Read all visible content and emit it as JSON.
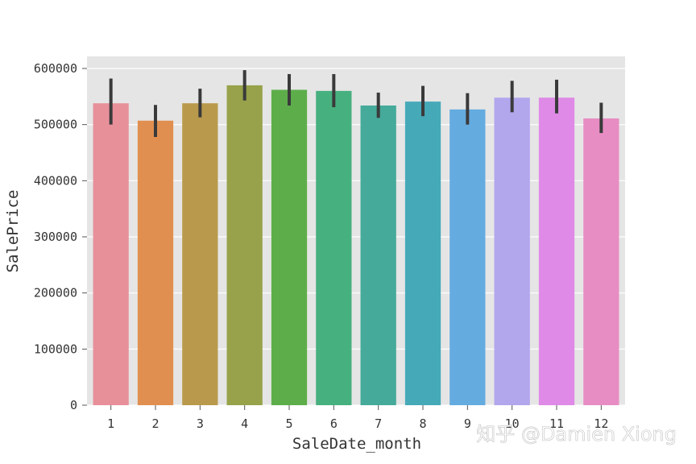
{
  "chart_data": {
    "type": "bar",
    "title": "",
    "xlabel": "SaleDate_month",
    "ylabel": "SalePrice",
    "categories": [
      "1",
      "2",
      "3",
      "4",
      "5",
      "6",
      "7",
      "8",
      "9",
      "10",
      "11",
      "12"
    ],
    "values": [
      538000,
      507000,
      538000,
      570000,
      562000,
      560000,
      534000,
      541000,
      527000,
      548000,
      548000,
      511000
    ],
    "error_low": [
      500000,
      478000,
      513000,
      543000,
      534000,
      531000,
      512000,
      515000,
      500000,
      522000,
      520000,
      485000
    ],
    "error_high": [
      582000,
      535000,
      564000,
      597000,
      590000,
      590000,
      557000,
      569000,
      556000,
      578000,
      580000,
      539000
    ],
    "ylim": [
      0,
      600000
    ],
    "yticks": [
      0,
      100000,
      200000,
      300000,
      400000,
      500000,
      600000
    ],
    "ytick_labels": [
      "0",
      "100000",
      "200000",
      "300000",
      "400000",
      "500000",
      "600000"
    ],
    "grid": true,
    "colors": [
      "#e8909a",
      "#e08f50",
      "#b99a4c",
      "#97a24a",
      "#5dae4a",
      "#47b07f",
      "#45aa9a",
      "#46a9b8",
      "#64abe0",
      "#b2a6ed",
      "#de8ae6",
      "#e88dc3"
    ],
    "error_color": "#3a3a3a",
    "background": "#e5e5e5"
  },
  "watermark": "知乎 @Damien Xiong"
}
